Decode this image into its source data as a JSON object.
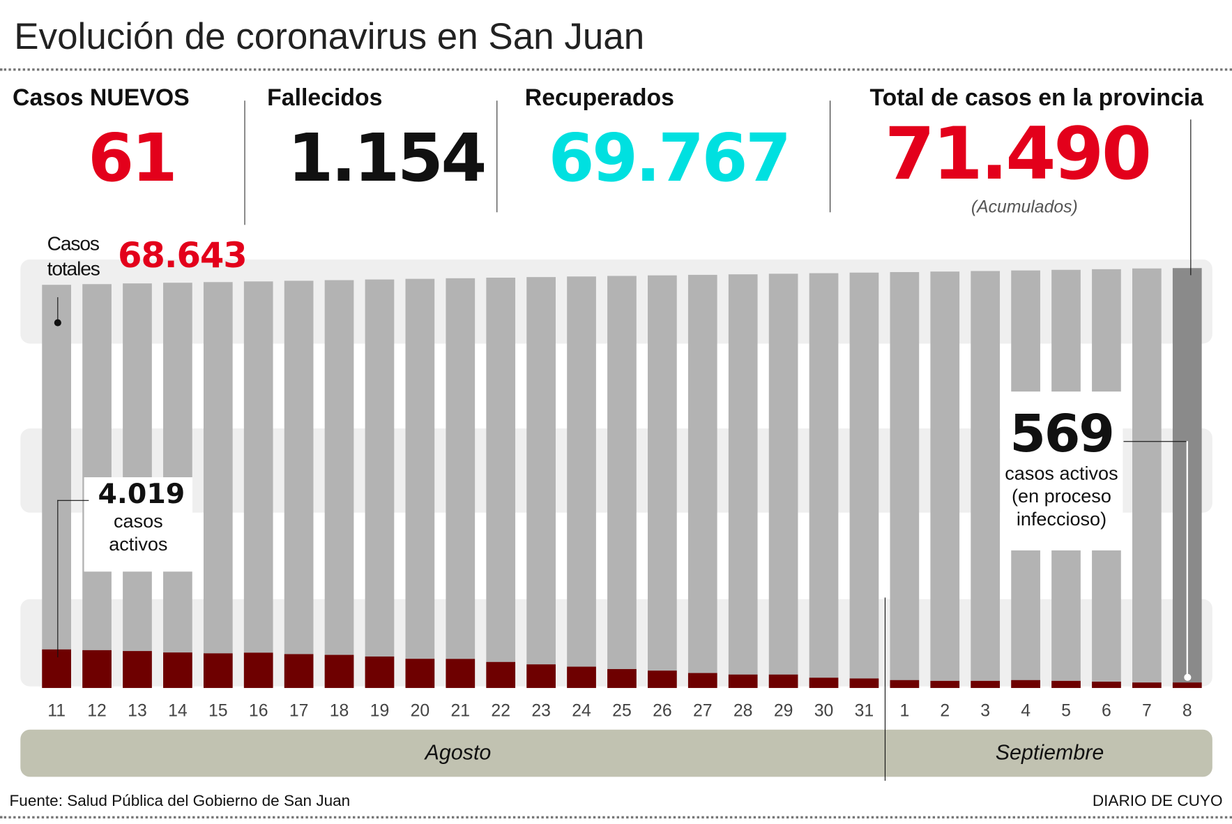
{
  "title": "Evolución de coronavirus en San Juan",
  "stats": {
    "new_cases": {
      "label": "Casos NUEVOS",
      "value": "61",
      "color": "#e3001b"
    },
    "deaths": {
      "label": "Fallecidos",
      "value": "1.154",
      "color": "#111111"
    },
    "recovered": {
      "label": "Recuperados",
      "value": "69.767",
      "color": "#00e0e0"
    },
    "total": {
      "label": "Total de casos en la provincia",
      "value": "71.490",
      "note": "(Acumulados)",
      "color": "#e3001b"
    }
  },
  "annotations": {
    "total_label_line1": "Casos",
    "total_label_line2": "totales",
    "total_first": "68.643",
    "active_first_value": "4.019",
    "active_first_line1": "casos",
    "active_first_line2": "activos",
    "active_last_value": "569",
    "active_last_line1": "casos activos",
    "active_last_line2": "(en proceso",
    "active_last_line3": "infeccioso)"
  },
  "chart_data": {
    "type": "bar",
    "stacked": "overlay",
    "categories": [
      "11",
      "12",
      "13",
      "14",
      "15",
      "16",
      "17",
      "18",
      "19",
      "20",
      "21",
      "22",
      "23",
      "24",
      "25",
      "26",
      "27",
      "28",
      "29",
      "30",
      "31",
      "1",
      "2",
      "3",
      "4",
      "5",
      "6",
      "7",
      "8"
    ],
    "months": [
      {
        "label": "Agosto",
        "days": 21
      },
      {
        "label": "Septiembre",
        "days": 8
      }
    ],
    "series": [
      {
        "name": "Casos totales",
        "color": "#b3b3b3",
        "highlight_color": "#8a8a8a",
        "values": [
          68643,
          68760,
          68880,
          69000,
          69110,
          69220,
          69330,
          69440,
          69550,
          69660,
          69760,
          69860,
          69960,
          70060,
          70160,
          70250,
          70340,
          70430,
          70530,
          70620,
          70720,
          70810,
          70900,
          70990,
          71090,
          71190,
          71300,
          71429,
          71490
        ]
      },
      {
        "name": "casos activos",
        "color": "#6e0000",
        "values": [
          4019,
          3940,
          3850,
          3700,
          3610,
          3680,
          3530,
          3450,
          3280,
          3040,
          3030,
          2710,
          2460,
          2220,
          1970,
          1810,
          1560,
          1400,
          1400,
          1070,
          990,
          820,
          740,
          740,
          820,
          740,
          660,
          570,
          569
        ]
      }
    ],
    "grid": false
  },
  "footer": {
    "source": "Fuente: Salud Pública del Gobierno de San Juan",
    "brand": "DIARIO DE CUYO"
  }
}
